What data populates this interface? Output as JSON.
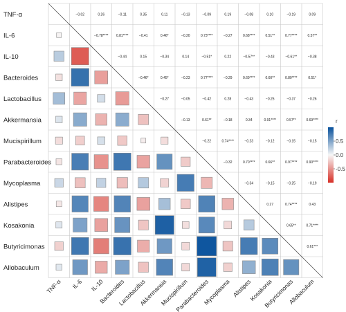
{
  "chart_data": {
    "type": "heatmap",
    "style": "lower-triangle squares sized by |r|, upper-triangle printed coefficients",
    "variables": [
      "TNF-α",
      "IL-6",
      "IL-10",
      "Bacteroides",
      "Lactobacillus",
      "Akkermansia",
      "Mucispirillum",
      "Parabacteroides",
      "Mycoplasma",
      "Alistipes",
      "Kosakonia",
      "Butyricimonas",
      "Allobaculum"
    ],
    "upper_labels": [
      [
        "",
        "−0.02",
        "0.26",
        "−0.11",
        "0.35",
        "0.11",
        "−0.13",
        "−0.09",
        "0.19",
        "−0.08",
        "0.10",
        "−0.19",
        "0.09"
      ],
      [
        "",
        "",
        "−0.78****",
        "0.81****",
        "−0.41",
        "0.46*",
        "−0.20",
        "0.73****",
        "−0.27",
        "0.68****",
        "0.51**",
        "0.77****",
        "0.57**"
      ],
      [
        "",
        "",
        "",
        "−0.44",
        "0.15",
        "−0.34",
        "0.14",
        "−0.51*",
        "0.22",
        "−0.57**",
        "−0.43",
        "−0.61**",
        "−0.38"
      ],
      [
        "",
        "",
        "",
        "",
        "−0.46*",
        "0.45*",
        "−0.23",
        "0.77****",
        "−0.29",
        "0.69****",
        "0.60**",
        "0.80****",
        "0.51*"
      ],
      [
        "",
        "",
        "",
        "",
        "",
        "−0.27",
        "−0.05",
        "−0.42",
        "0.28",
        "−0.43",
        "−0.25",
        "−0.37",
        "−0.26"
      ],
      [
        "",
        "",
        "",
        "",
        "",
        "",
        "−0.13",
        "0.61**",
        "−0.18",
        "0.34",
        "0.91****",
        "0.57**",
        "0.69****"
      ],
      [
        "",
        "",
        "",
        "",
        "",
        "",
        "",
        "−0.22",
        "0.74****",
        "−0.23",
        "−0.12",
        "−0.15",
        "−0.15"
      ],
      [
        "",
        "",
        "",
        "",
        "",
        "",
        "",
        "",
        "−0.32",
        "0.70****",
        "0.66**",
        "0.97****",
        "0.90****"
      ],
      [
        "",
        "",
        "",
        "",
        "",
        "",
        "",
        "",
        "",
        "−0.34",
        "−0.15",
        "−0.25",
        "−0.19"
      ],
      [
        "",
        "",
        "",
        "",
        "",
        "",
        "",
        "",
        "",
        "",
        "0.27",
        "0.74****",
        "0.43"
      ],
      [
        "",
        "",
        "",
        "",
        "",
        "",
        "",
        "",
        "",
        "",
        "",
        "0.65**",
        "0.71****"
      ],
      [
        "",
        "",
        "",
        "",
        "",
        "",
        "",
        "",
        "",
        "",
        "",
        "",
        "0.61***"
      ],
      [
        "",
        "",
        "",
        "",
        "",
        "",
        "",
        "",
        "",
        "",
        "",
        "",
        ""
      ]
    ],
    "lower_values": [
      [],
      [
        -0.02
      ],
      [
        0.26,
        -0.78
      ],
      [
        -0.11,
        0.81,
        -0.44
      ],
      [
        0.35,
        -0.41,
        0.15,
        -0.46
      ],
      [
        0.11,
        0.46,
        -0.34,
        0.45,
        -0.27
      ],
      [
        -0.13,
        -0.2,
        0.14,
        -0.23,
        -0.05,
        -0.13
      ],
      [
        -0.09,
        0.73,
        -0.51,
        0.77,
        -0.42,
        0.61,
        -0.22
      ],
      [
        0.19,
        -0.27,
        0.22,
        -0.29,
        0.28,
        -0.18,
        0.74,
        -0.32
      ],
      [
        -0.08,
        0.68,
        -0.57,
        0.69,
        -0.43,
        0.34,
        -0.23,
        0.7,
        -0.34
      ],
      [
        0.1,
        0.51,
        -0.43,
        0.6,
        -0.25,
        0.91,
        -0.12,
        0.66,
        -0.15,
        0.27
      ],
      [
        -0.19,
        0.77,
        -0.61,
        0.8,
        -0.37,
        0.57,
        -0.15,
        0.97,
        -0.25,
        0.74,
        0.65
      ],
      [
        0.09,
        0.57,
        -0.38,
        0.51,
        -0.26,
        0.69,
        -0.15,
        0.9,
        -0.19,
        0.43,
        0.71,
        0.61
      ]
    ],
    "color_scale": {
      "title": "r",
      "ticks": [
        "0.5",
        "0.0",
        "-0.5"
      ],
      "neg": "#d73027",
      "mid": "#f7f7f7",
      "pos": "#08519c"
    }
  }
}
